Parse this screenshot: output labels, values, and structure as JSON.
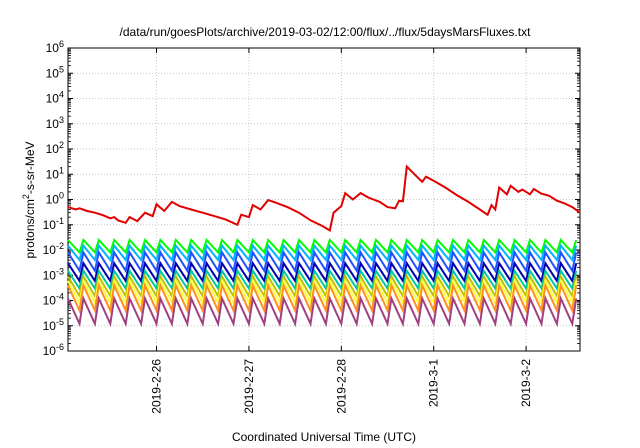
{
  "chart_data": {
    "type": "line",
    "title": "/data/run/goesPlots/archive/2019-03-02/12:00/flux/../flux/5daysMarsFluxes.txt",
    "xlabel": "Coordinated Universal Time (UTC)",
    "ylabel_parts": {
      "pre": "protons/cm",
      "sup": "2",
      "post": "-s-sr-MeV"
    },
    "x_scale": "time",
    "x_range": [
      "2019-02-25 01:00",
      "2019-03-02 14:00"
    ],
    "x_ticks": [
      {
        "date": "2019-02-26 00:00",
        "label": "2019-2-26"
      },
      {
        "date": "2019-02-27 00:00",
        "label": "2019-2-27"
      },
      {
        "date": "2019-02-28 00:00",
        "label": "2019-2-28"
      },
      {
        "date": "2019-03-01 00:00",
        "label": "2019-3-1"
      },
      {
        "date": "2019-03-02 00:00",
        "label": "2019-3-2"
      }
    ],
    "y_scale": "log",
    "ylim": [
      1e-06,
      1000000.0
    ],
    "y_ticks": [
      {
        "base": "10",
        "exp": "6",
        "value": 1000000.0
      },
      {
        "base": "10",
        "exp": "5",
        "value": 100000.0
      },
      {
        "base": "10",
        "exp": "4",
        "value": 10000.0
      },
      {
        "base": "10",
        "exp": "3",
        "value": 1000.0
      },
      {
        "base": "10",
        "exp": "2",
        "value": 100.0
      },
      {
        "base": "10",
        "exp": "1",
        "value": 10.0
      },
      {
        "base": "10",
        "exp": "0",
        "value": 1
      },
      {
        "base": "10",
        "exp": "-1",
        "value": 0.1
      },
      {
        "base": "10",
        "exp": "-2",
        "value": 0.01
      },
      {
        "base": "10",
        "exp": "-3",
        "value": 0.001
      },
      {
        "base": "10",
        "exp": "-4",
        "value": 0.0001
      },
      {
        "base": "10",
        "exp": "-5",
        "value": 1e-05
      },
      {
        "base": "10",
        "exp": "-6",
        "value": 1e-06
      }
    ],
    "grid": true,
    "legend": "none",
    "series": [
      {
        "color": "#e00000",
        "points": [
          [
            "2019-02-25 01:00",
            0.5
          ],
          [
            "2019-02-25 03:00",
            0.4
          ],
          [
            "2019-02-25 04:00",
            0.45
          ],
          [
            "2019-02-25 06:00",
            0.35
          ],
          [
            "2019-02-25 08:00",
            0.3
          ],
          [
            "2019-02-25 10:00",
            0.24
          ],
          [
            "2019-02-25 12:00",
            0.18
          ],
          [
            "2019-02-25 13:00",
            0.2
          ],
          [
            "2019-02-25 14:00",
            0.15
          ],
          [
            "2019-02-25 16:00",
            0.12
          ],
          [
            "2019-02-25 17:00",
            0.2
          ],
          [
            "2019-02-25 19:00",
            0.14
          ],
          [
            "2019-02-25 21:00",
            0.3
          ],
          [
            "2019-02-25 23:00",
            0.22
          ],
          [
            "2019-02-26 00:00",
            0.65
          ],
          [
            "2019-02-26 02:00",
            0.35
          ],
          [
            "2019-02-26 04:00",
            0.8
          ],
          [
            "2019-02-26 06:00",
            0.55
          ],
          [
            "2019-02-26 09:00",
            0.4
          ],
          [
            "2019-02-26 12:00",
            0.3
          ],
          [
            "2019-02-26 15:00",
            0.22
          ],
          [
            "2019-02-26 18:00",
            0.16
          ],
          [
            "2019-02-26 21:00",
            0.1
          ],
          [
            "2019-02-26 22:00",
            0.25
          ],
          [
            "2019-02-27 00:00",
            0.2
          ],
          [
            "2019-02-27 01:00",
            0.6
          ],
          [
            "2019-02-27 03:00",
            0.4
          ],
          [
            "2019-02-27 05:00",
            0.95
          ],
          [
            "2019-02-27 07:00",
            0.75
          ],
          [
            "2019-02-27 10:00",
            0.5
          ],
          [
            "2019-02-27 13:00",
            0.3
          ],
          [
            "2019-02-27 16:00",
            0.15
          ],
          [
            "2019-02-27 19:00",
            0.09
          ],
          [
            "2019-02-27 21:00",
            0.06
          ],
          [
            "2019-02-27 22:00",
            0.3
          ],
          [
            "2019-02-28 00:00",
            0.55
          ],
          [
            "2019-02-28 01:00",
            1.8
          ],
          [
            "2019-02-28 03:00",
            1.0
          ],
          [
            "2019-02-28 05:00",
            1.8
          ],
          [
            "2019-02-28 07:00",
            1.2
          ],
          [
            "2019-02-28 10:00",
            0.8
          ],
          [
            "2019-02-28 12:00",
            0.5
          ],
          [
            "2019-02-28 14:00",
            0.45
          ],
          [
            "2019-02-28 15:00",
            0.9
          ],
          [
            "2019-02-28 16:00",
            0.85
          ],
          [
            "2019-02-28 17:00",
            20
          ],
          [
            "2019-02-28 19:00",
            10
          ],
          [
            "2019-02-28 21:00",
            5
          ],
          [
            "2019-02-28 22:00",
            8
          ],
          [
            "2019-03-01 00:00",
            5.5
          ],
          [
            "2019-03-01 03:00",
            3
          ],
          [
            "2019-03-01 06:00",
            1.5
          ],
          [
            "2019-03-01 09:00",
            0.8
          ],
          [
            "2019-03-01 12:00",
            0.4
          ],
          [
            "2019-03-01 14:00",
            0.25
          ],
          [
            "2019-03-01 15:00",
            0.6
          ],
          [
            "2019-03-01 16:00",
            0.4
          ],
          [
            "2019-03-01 17:00",
            3.0
          ],
          [
            "2019-03-01 19:00",
            1.6
          ],
          [
            "2019-03-01 20:00",
            3.5
          ],
          [
            "2019-03-01 22:00",
            2.0
          ],
          [
            "2019-03-01 23:00",
            2.5
          ],
          [
            "2019-03-02 01:00",
            1.6
          ],
          [
            "2019-03-02 02:00",
            2.6
          ],
          [
            "2019-03-02 04:00",
            1.7
          ],
          [
            "2019-03-02 06:00",
            1.4
          ],
          [
            "2019-03-02 08:00",
            0.9
          ],
          [
            "2019-03-02 10:00",
            0.7
          ],
          [
            "2019-03-02 12:00",
            0.5
          ],
          [
            "2019-03-02 14:00",
            0.3
          ]
        ]
      },
      {
        "color": "#00ff00",
        "oscillation": {
          "start": "2019-02-25 01:00",
          "end": "2019-03-02 14:00",
          "period_hours": 4,
          "peak": 0.025,
          "trough": 0.008
        }
      },
      {
        "color": "#00b4ff",
        "oscillation": {
          "start": "2019-02-25 01:00",
          "end": "2019-03-02 14:00",
          "period_hours": 4,
          "peak": 0.015,
          "trough": 0.004
        }
      },
      {
        "color": "#2050ff",
        "oscillation": {
          "start": "2019-02-25 01:00",
          "end": "2019-03-02 14:00",
          "period_hours": 4,
          "peak": 0.008,
          "trough": 0.0015
        }
      },
      {
        "color": "#0000b0",
        "oscillation": {
          "start": "2019-02-25 01:00",
          "end": "2019-03-02 14:00",
          "period_hours": 4,
          "peak": 0.003,
          "trough": 0.0006
        }
      },
      {
        "color": "#00c8a0",
        "oscillation": {
          "start": "2019-02-25 01:00",
          "end": "2019-03-02 14:00",
          "period_hours": 4,
          "peak": 0.0015,
          "trough": 0.0003
        }
      },
      {
        "color": "#c0c000",
        "oscillation": {
          "start": "2019-02-25 01:00",
          "end": "2019-03-02 14:00",
          "period_hours": 4,
          "peak": 0.0009,
          "trough": 0.00015
        }
      },
      {
        "color": "#ffff40",
        "oscillation": {
          "start": "2019-02-25 01:00",
          "end": "2019-03-02 14:00",
          "period_hours": 4,
          "peak": 0.0006,
          "trough": 8e-05
        }
      },
      {
        "color": "#ff9020",
        "oscillation": {
          "start": "2019-02-25 01:00",
          "end": "2019-03-02 14:00",
          "period_hours": 4,
          "peak": 0.0004,
          "trough": 4e-05
        }
      },
      {
        "color": "#a04080",
        "oscillation": {
          "start": "2019-02-25 01:00",
          "end": "2019-03-02 14:00",
          "period_hours": 4,
          "peak": 0.00012,
          "trough": 1.2e-05
        }
      }
    ]
  }
}
